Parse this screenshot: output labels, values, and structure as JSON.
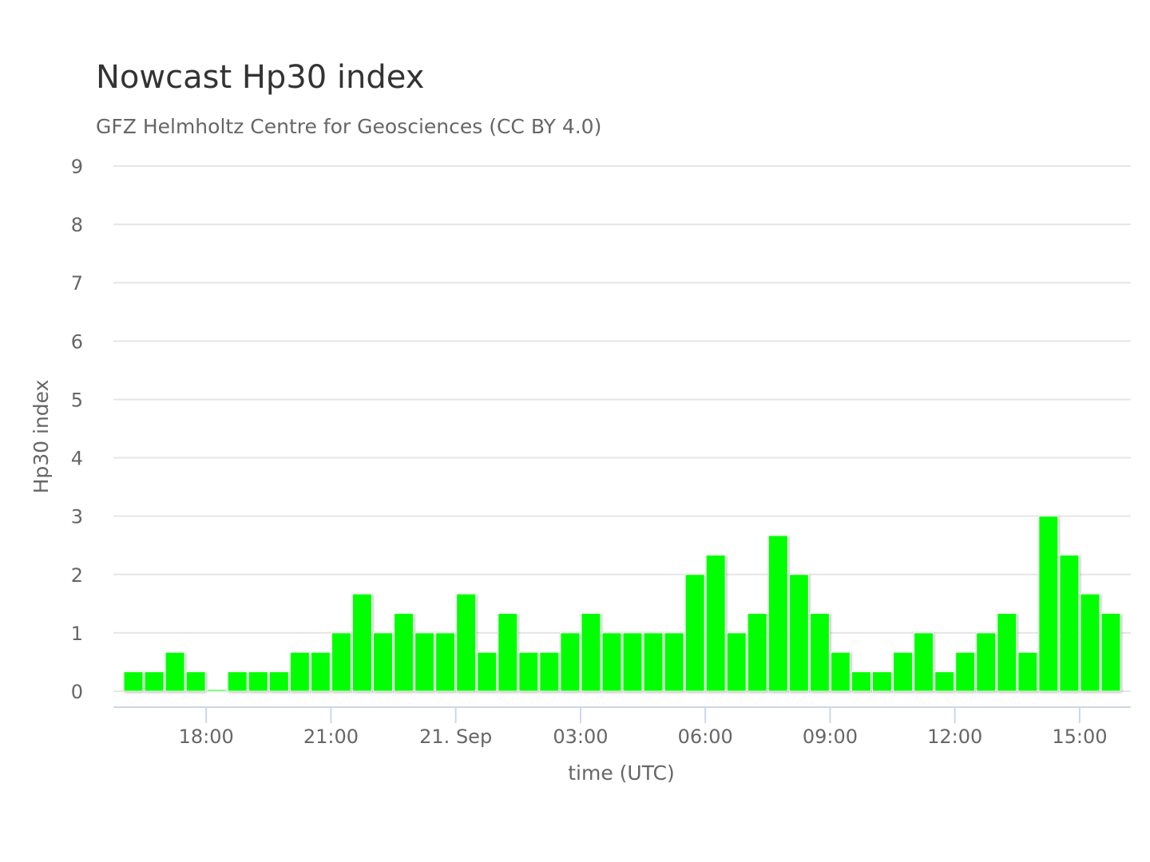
{
  "chart_data": {
    "type": "bar",
    "title": "Nowcast Hp30 index",
    "subtitle": "GFZ Helmholtz Centre for Geosciences (CC BY 4.0)",
    "xlabel": "time (UTC)",
    "ylabel": "Hp30 index",
    "ylim": [
      0,
      9
    ],
    "yticks": [
      "0",
      "1",
      "2",
      "3",
      "4",
      "5",
      "6",
      "7",
      "8",
      "9"
    ],
    "xticks": [
      {
        "label": "18:00",
        "t": 18
      },
      {
        "label": "21:00",
        "t": 21
      },
      {
        "label": "21. Sep",
        "t": 24
      },
      {
        "label": "03:00",
        "t": 27
      },
      {
        "label": "06:00",
        "t": 30
      },
      {
        "label": "09:00",
        "t": 33
      },
      {
        "label": "12:00",
        "t": 36
      },
      {
        "label": "15:00",
        "t": 39
      }
    ],
    "x_start": "2024-09-20 16:00",
    "interval_minutes": 30,
    "values": [
      0.333,
      0.333,
      0.667,
      0.333,
      0,
      0.333,
      0.333,
      0.333,
      0.667,
      0.667,
      1,
      1.667,
      1,
      1.333,
      1,
      1,
      1.667,
      0.667,
      1.333,
      0.667,
      0.667,
      1,
      1.333,
      1,
      1,
      1,
      1,
      2,
      2.333,
      1,
      1.333,
      2.667,
      2,
      1.333,
      0.667,
      0.333,
      0.333,
      0.667,
      1,
      0.333,
      0.667,
      1,
      1.333,
      0.667,
      3,
      2.333,
      1.667,
      1.333
    ],
    "bar_color": "#00ff00",
    "grid": true
  }
}
